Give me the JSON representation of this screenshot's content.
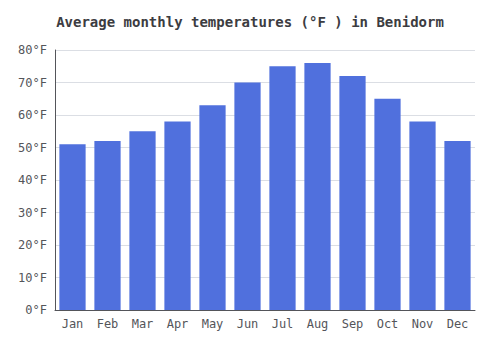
{
  "chart_data": {
    "type": "bar",
    "title": "Average monthly temperatures (°F ) in Benidorm",
    "categories": [
      "Jan",
      "Feb",
      "Mar",
      "Apr",
      "May",
      "Jun",
      "Jul",
      "Aug",
      "Sep",
      "Oct",
      "Nov",
      "Dec"
    ],
    "values": [
      51,
      52,
      55,
      58,
      63,
      70,
      75,
      76,
      72,
      65,
      58,
      52
    ],
    "ylim": [
      0,
      80
    ],
    "yticks": [
      {
        "value": 0,
        "label": "0°F"
      },
      {
        "value": 10,
        "label": "10°F"
      },
      {
        "value": 20,
        "label": "20°F"
      },
      {
        "value": 30,
        "label": "30°F"
      },
      {
        "value": 40,
        "label": "40°F"
      },
      {
        "value": 50,
        "label": "50°F"
      },
      {
        "value": 60,
        "label": "60°F"
      },
      {
        "value": 70,
        "label": "70°F"
      },
      {
        "value": 80,
        "label": "80°F"
      }
    ],
    "grid": true
  }
}
